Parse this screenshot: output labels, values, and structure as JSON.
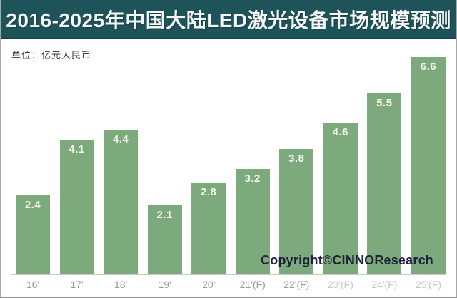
{
  "header": {
    "title": "2016-2025年中国大陆LED激光设备市场规模预测"
  },
  "unit_label": "单位：亿元人民币",
  "copyright": "Copyright©CINNOResearch",
  "colors": {
    "header_background": "#1d5359",
    "bar_green": "#7daa7c",
    "bar_value_text": "#f3f5ee",
    "axis_label_gray": "#999999",
    "axis_label_faded": "#c6c6c6",
    "copyright_text": "#1e2138",
    "axis_line": "#c9c9c9"
  },
  "chart_data": {
    "type": "bar",
    "title": "2016-2025年中国大陆LED激光设备市场规模预测",
    "categories": [
      "16'",
      "17'",
      "18'",
      "19'",
      "20'",
      "21'(F)",
      "22'(F)",
      "23'(F)",
      "24'(F)",
      "25'(F)"
    ],
    "values": [
      2.4,
      4.1,
      4.4,
      2.1,
      2.8,
      3.2,
      3.8,
      4.6,
      5.5,
      6.6
    ],
    "xlabel": "",
    "ylabel": "亿元人民币",
    "ylim": [
      0,
      6.6
    ],
    "grid": false,
    "legend": false,
    "value_labels_position": "inside-top",
    "faded_category_indices": [
      7,
      8,
      9
    ],
    "bar_color": "#7daa7c"
  }
}
